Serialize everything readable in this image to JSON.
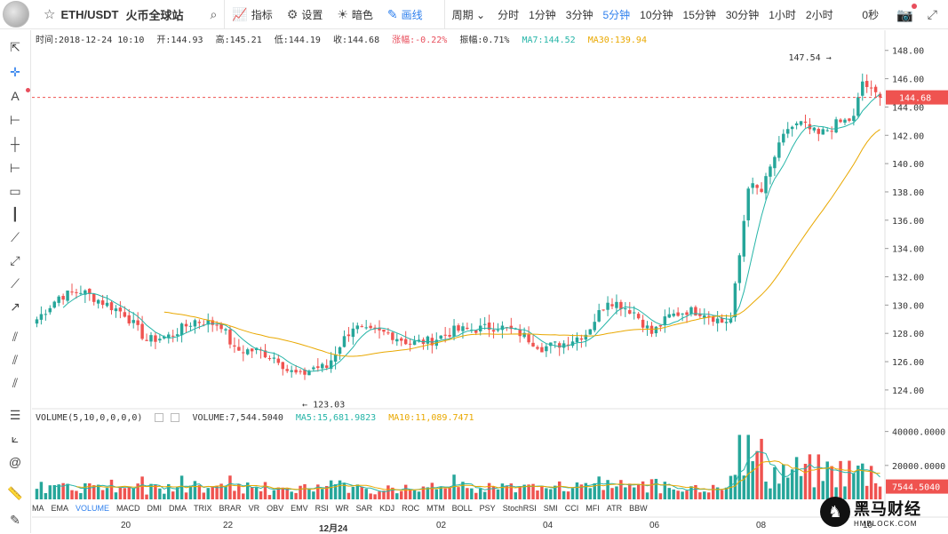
{
  "header": {
    "symbol": "ETH/USDT",
    "exchange": "火币全球站",
    "indicators_label": "指标",
    "settings_label": "设置",
    "dark_label": "暗色",
    "draw_label": "画线",
    "period_label": "周期",
    "intervals": [
      "分时",
      "1分钟",
      "3分钟",
      "5分钟",
      "10分钟",
      "15分钟",
      "30分钟",
      "1小时",
      "2小时"
    ],
    "active_interval": "5分钟",
    "countdown": "0秒"
  },
  "info": {
    "time": "时间:2018-12-24 10:10",
    "open": "开:144.93",
    "high": "高:145.21",
    "low": "低:144.19",
    "close": "收:144.68",
    "change": "涨幅:-0.22%",
    "amplitude": "振幅:0.71%",
    "ma7": "MA7:144.52",
    "ma30": "MA30:139.94"
  },
  "volume_info": {
    "title": "VOLUME(5,10,0,0,0,0)",
    "volume": "VOLUME:7,544.5040",
    "ma5": "MA5:15,681.9823",
    "ma10": "MA10:11,089.7471"
  },
  "price_axis": {
    "ticks": [
      "148.00",
      "146.00",
      "144.00",
      "142.00",
      "140.00",
      "138.00",
      "136.00",
      "134.00",
      "132.00",
      "130.00",
      "128.00",
      "126.00",
      "124.00"
    ],
    "current": "144.68"
  },
  "volume_axis": {
    "ticks": [
      "40000.0000",
      "20000.0000"
    ],
    "current": "7544.5040"
  },
  "annotations": {
    "high": "147.54",
    "low": "123.03"
  },
  "indicator_tabs": [
    "MA",
    "EMA",
    "VOLUME",
    "MACD",
    "DMI",
    "DMA",
    "TRIX",
    "BRAR",
    "VR",
    "OBV",
    "EMV",
    "RSI",
    "WR",
    "SAR",
    "KDJ",
    "ROC",
    "MTM",
    "BOLL",
    "PSY",
    "StochRSI",
    "SMI",
    "CCI",
    "MFI",
    "ATR",
    "BBW"
  ],
  "active_tab": "VOLUME",
  "x_axis": [
    "20",
    "22",
    "12月24",
    "02",
    "04",
    "06",
    "08",
    "10"
  ],
  "watermark": {
    "cn": "黑马财经",
    "en": "HMBLOCK.COM"
  },
  "colors": {
    "up": "#26a69a",
    "down": "#ef5350",
    "ma7": "#26b5a8",
    "ma30": "#e9a800",
    "accent": "#2f80ed"
  },
  "chart_data": {
    "type": "candlestick",
    "anchors": [
      [
        0,
        129.0
      ],
      [
        5,
        130.6
      ],
      [
        10,
        131.0
      ],
      [
        15,
        130.2
      ],
      [
        20,
        129.4
      ],
      [
        25,
        127.5
      ],
      [
        30,
        127.8
      ],
      [
        36,
        128.9
      ],
      [
        42,
        128.6
      ],
      [
        45,
        126.8
      ],
      [
        50,
        126.8
      ],
      [
        55,
        126.2
      ],
      [
        57,
        125.4
      ],
      [
        60,
        125.0
      ],
      [
        63,
        125.6
      ],
      [
        66,
        125.6
      ],
      [
        69,
        127.2
      ],
      [
        72,
        128.5
      ],
      [
        75,
        128.1
      ],
      [
        80,
        128.0
      ],
      [
        85,
        127.3
      ],
      [
        90,
        127.5
      ],
      [
        95,
        128.2
      ],
      [
        100,
        128.3
      ],
      [
        105,
        128.5
      ],
      [
        110,
        128.0
      ],
      [
        115,
        127.0
      ],
      [
        120,
        127.3
      ],
      [
        125,
        128.0
      ],
      [
        130,
        130.4
      ],
      [
        133,
        130.0
      ],
      [
        136,
        129.5
      ],
      [
        140,
        128.0
      ],
      [
        144,
        129.2
      ],
      [
        148,
        129.6
      ],
      [
        152,
        129.5
      ],
      [
        156,
        128.8
      ],
      [
        158,
        129.0
      ],
      [
        160,
        133.5
      ],
      [
        162,
        138.5
      ],
      [
        165,
        138.0
      ],
      [
        168,
        140.5
      ],
      [
        171,
        142.5
      ],
      [
        174,
        142.8
      ],
      [
        178,
        142.0
      ],
      [
        182,
        142.8
      ],
      [
        186,
        143.2
      ],
      [
        188,
        145.8
      ],
      [
        190,
        145.1
      ],
      [
        192,
        144.68
      ]
    ],
    "wick_seed": 7,
    "ylim": [
      122.8,
      148.8
    ],
    "volume_max": 44000,
    "ma_periods": [
      7,
      30
    ]
  }
}
